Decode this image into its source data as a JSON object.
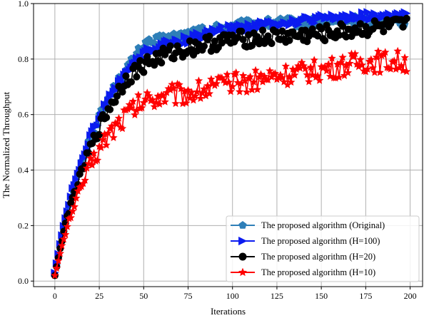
{
  "chart_data": {
    "type": "line",
    "xlabel": "Iterations",
    "ylabel": "The Normalized Throughput",
    "xlim": [
      -12,
      207
    ],
    "ylim": [
      -0.02,
      1.0
    ],
    "xticks": [
      "0",
      "25",
      "50",
      "75",
      "100",
      "125",
      "150",
      "175",
      "200"
    ],
    "yticks": [
      "0.0",
      "0.2",
      "0.4",
      "0.6",
      "0.8",
      "1.0"
    ],
    "grid": true,
    "legend_position": "lower-right",
    "x_range": [
      0,
      198
    ],
    "series": [
      {
        "name": "The proposed algorithm (Original)",
        "color": "#2e7fb8",
        "marker": "pentagon",
        "anchors": [
          [
            0,
            0.02
          ],
          [
            5,
            0.2
          ],
          [
            10,
            0.33
          ],
          [
            20,
            0.52
          ],
          [
            30,
            0.66
          ],
          [
            40,
            0.76
          ],
          [
            50,
            0.85
          ],
          [
            60,
            0.87
          ],
          [
            75,
            0.89
          ],
          [
            90,
            0.91
          ],
          [
            100,
            0.92
          ],
          [
            125,
            0.93
          ],
          [
            150,
            0.935
          ],
          [
            175,
            0.94
          ],
          [
            198,
            0.94
          ]
        ],
        "noise": 0.018
      },
      {
        "name": "The proposed algorithm (H=100)",
        "color": "#0b1bf0",
        "marker": "triangle-right",
        "anchors": [
          [
            0,
            0.03
          ],
          [
            5,
            0.2
          ],
          [
            10,
            0.33
          ],
          [
            20,
            0.52
          ],
          [
            30,
            0.65
          ],
          [
            40,
            0.75
          ],
          [
            50,
            0.82
          ],
          [
            60,
            0.85
          ],
          [
            75,
            0.87
          ],
          [
            90,
            0.9
          ],
          [
            100,
            0.91
          ],
          [
            125,
            0.93
          ],
          [
            150,
            0.945
          ],
          [
            175,
            0.955
          ],
          [
            198,
            0.955
          ]
        ],
        "noise": 0.015
      },
      {
        "name": "The proposed algorithm (H=20)",
        "color": "#000000",
        "marker": "circle",
        "anchors": [
          [
            0,
            0.02
          ],
          [
            5,
            0.18
          ],
          [
            10,
            0.3
          ],
          [
            20,
            0.48
          ],
          [
            30,
            0.62
          ],
          [
            40,
            0.73
          ],
          [
            50,
            0.78
          ],
          [
            60,
            0.81
          ],
          [
            75,
            0.84
          ],
          [
            90,
            0.86
          ],
          [
            100,
            0.87
          ],
          [
            125,
            0.88
          ],
          [
            150,
            0.89
          ],
          [
            175,
            0.91
          ],
          [
            198,
            0.92
          ]
        ],
        "noise": 0.03
      },
      {
        "name": "The proposed algorithm (H=10)",
        "color": "#ff0000",
        "marker": "star",
        "anchors": [
          [
            0,
            0.02
          ],
          [
            5,
            0.15
          ],
          [
            10,
            0.26
          ],
          [
            20,
            0.42
          ],
          [
            30,
            0.53
          ],
          [
            40,
            0.6
          ],
          [
            50,
            0.65
          ],
          [
            60,
            0.67
          ],
          [
            75,
            0.68
          ],
          [
            90,
            0.7
          ],
          [
            100,
            0.71
          ],
          [
            125,
            0.74
          ],
          [
            150,
            0.76
          ],
          [
            175,
            0.79
          ],
          [
            198,
            0.79
          ]
        ],
        "noise": 0.04
      }
    ]
  }
}
